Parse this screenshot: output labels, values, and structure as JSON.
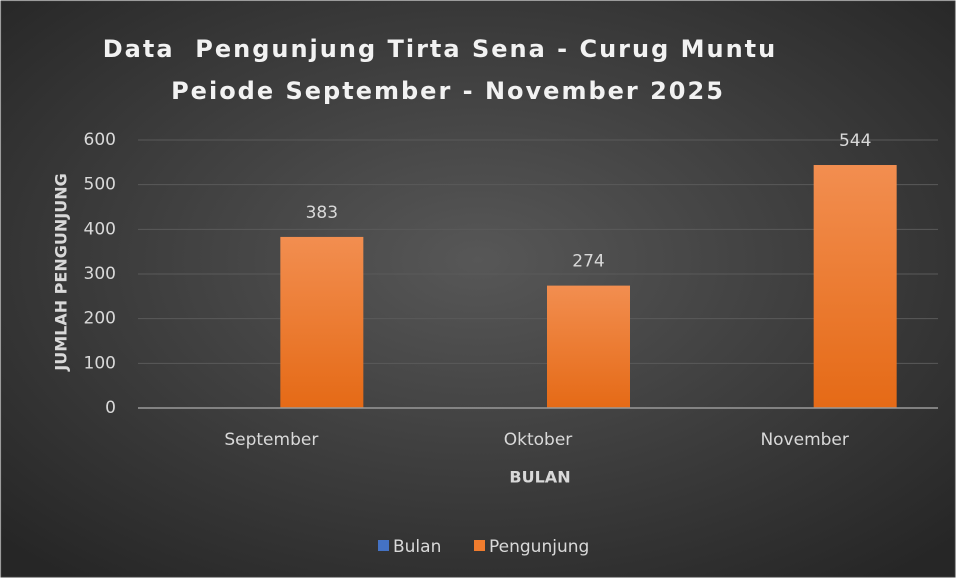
{
  "chart_data": {
    "type": "bar",
    "title": "Data  Pengunjung Tirta Sena - Curug Muntu",
    "subtitle": "Peiode September - November 2025",
    "x_label": "BULAN",
    "y_label": "JUMLAH PENGUNJUNG",
    "categories": [
      "September",
      "Oktober",
      "November"
    ],
    "series": [
      {
        "name": "Bulan",
        "color": "#4472c4",
        "values": [
          0,
          0,
          0
        ]
      },
      {
        "name": "Pengunjung",
        "color": "#f07c2e",
        "values": [
          383,
          274,
          544
        ]
      }
    ],
    "ylim": [
      0,
      600
    ],
    "yticks": [
      0,
      100,
      200,
      300,
      400,
      500,
      600
    ],
    "grid": true,
    "legend": "bottom",
    "data_labels_series": "Pengunjung"
  }
}
